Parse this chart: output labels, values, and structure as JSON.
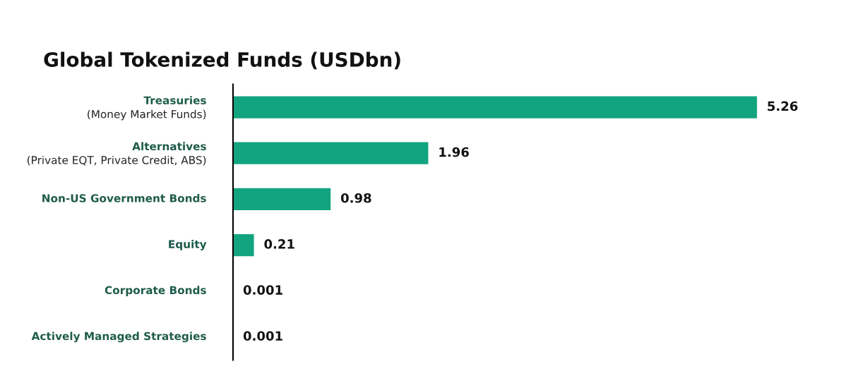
{
  "chart_data": {
    "type": "bar",
    "orientation": "horizontal",
    "title": "Global Tokenized Funds (USDbn)",
    "categories": [
      "Treasuries\n(Money Market Funds)",
      "Alternatives\n(Private EQT, Private Credit, ABS)",
      "Non-US Government Bonds",
      "Equity",
      "Corporate Bonds",
      "Actively Managed Strategies"
    ],
    "values": [
      5.26,
      1.96,
      0.98,
      0.21,
      0.001,
      0.001
    ],
    "color": "#12a47f",
    "data_labels": true,
    "tick_labels": "y"
  }
}
